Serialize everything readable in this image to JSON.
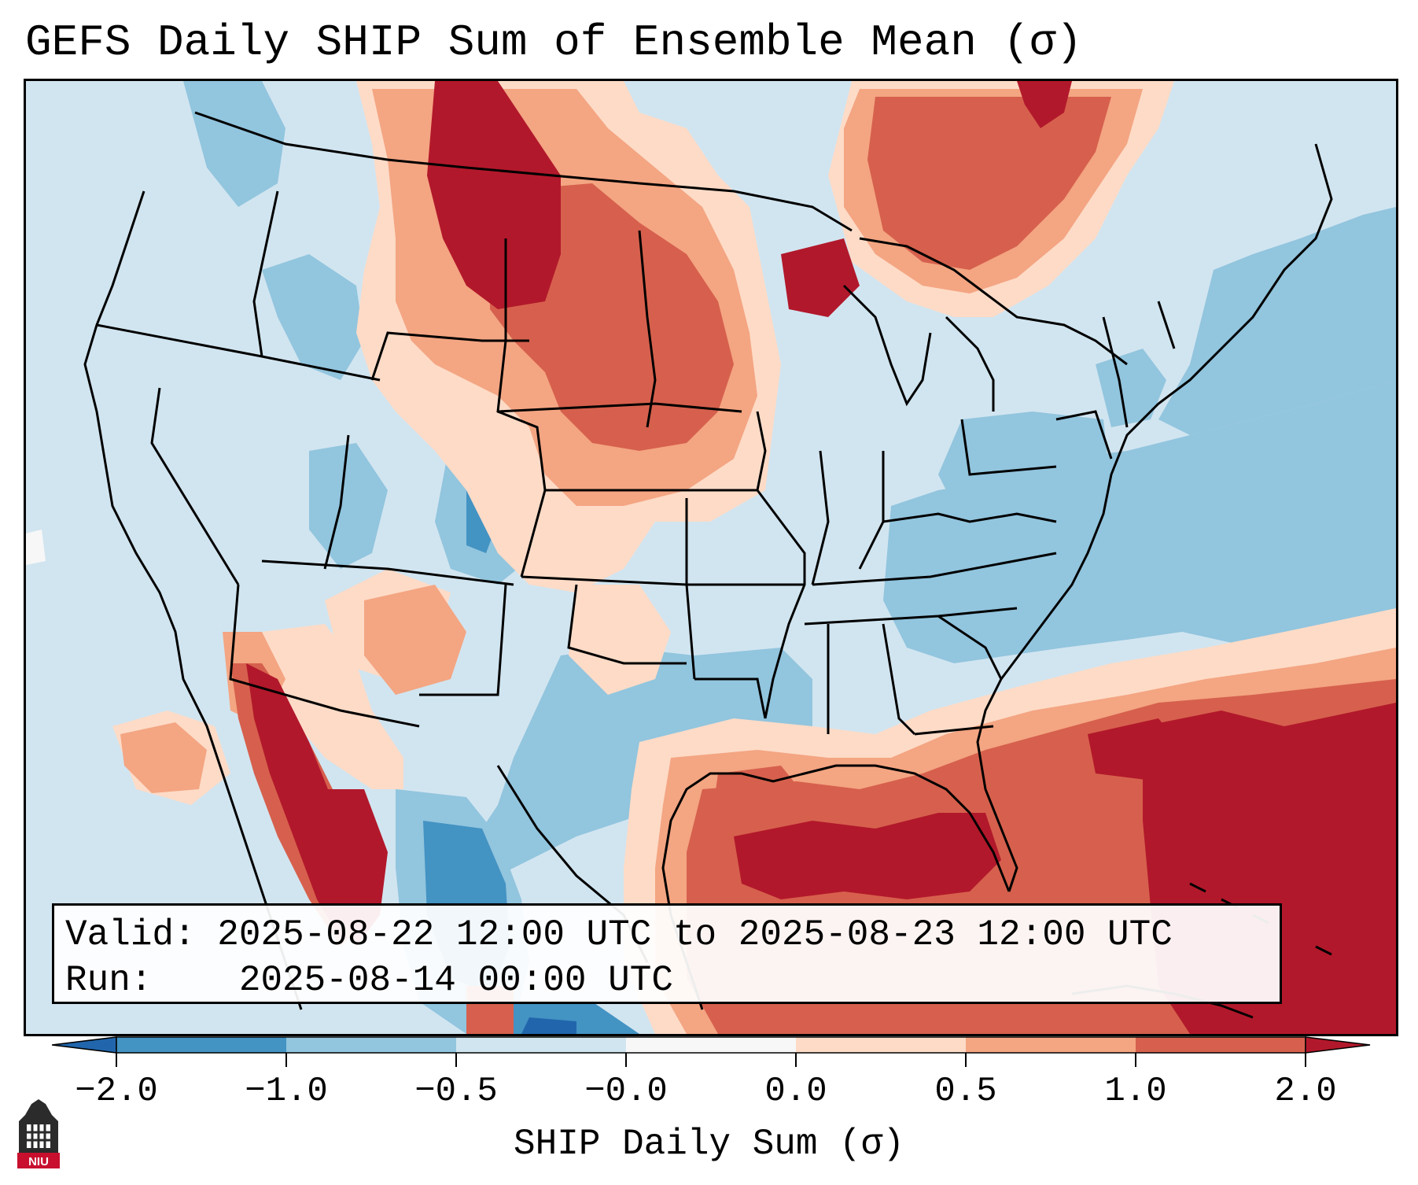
{
  "title": "GEFS Daily SHIP Sum of Ensemble Mean (σ)",
  "info": {
    "valid_label": "Valid:",
    "valid_value": "2025-08-22 12:00 UTC to 2025-08-23 12:00 UTC",
    "run_label": "Run:",
    "run_value": "2025-08-14 00:00 UTC"
  },
  "colorbar": {
    "label": "SHIP Daily Sum (σ)",
    "ticks": [
      "−2.0",
      "−1.0",
      "−0.5",
      "−0.0",
      "0.0",
      "0.5",
      "1.0",
      "2.0"
    ],
    "bins": [
      {
        "range": "-2.0 to -1.0",
        "color": "#4393c3"
      },
      {
        "range": "-1.0 to -0.5",
        "color": "#92c5de"
      },
      {
        "range": "-0.5 to -0.0",
        "color": "#d1e5f0"
      },
      {
        "range": "-0.0 to 0.0",
        "color": "#f7f7f7"
      },
      {
        "range": "0.0 to 0.5",
        "color": "#fddbc7"
      },
      {
        "range": "0.5 to 1.0",
        "color": "#f4a582"
      },
      {
        "range": "1.0 to 2.0",
        "color": "#d6604d"
      },
      {
        "range": "above 2.0",
        "color": "#b2182b"
      }
    ],
    "under_color": "#2166ac",
    "over_color": "#b2182b"
  },
  "logo": {
    "text": "NIU",
    "icon": "university-tower-icon",
    "color": "#c8102e"
  }
}
